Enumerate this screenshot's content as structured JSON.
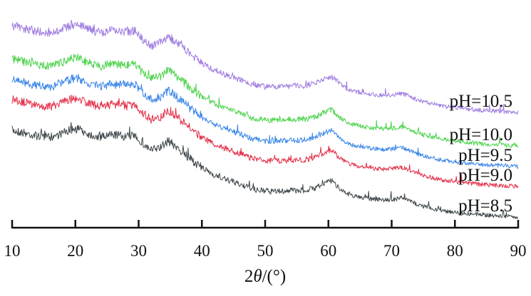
{
  "chart_data": {
    "type": "line",
    "title": "",
    "xlabel_prefix": "2",
    "xlabel_var": "θ",
    "xlabel_suffix": "/(°)",
    "ylabel": "",
    "xlim": [
      10,
      90
    ],
    "xticks": [
      "10",
      "20",
      "30",
      "40",
      "50",
      "60",
      "70",
      "80",
      "90"
    ],
    "y_axis_shown": false,
    "grid": false,
    "legend": "inline labels at right end of each trace",
    "series": [
      {
        "name": "pH=8.5",
        "color": "#3f474a",
        "offset": 0,
        "points": [
          [
            10,
            183
          ],
          [
            12,
            187
          ],
          [
            14,
            191
          ],
          [
            16,
            193
          ],
          [
            18,
            187
          ],
          [
            19.5,
            182
          ],
          [
            20.5,
            181
          ],
          [
            22,
            188
          ],
          [
            24,
            193
          ],
          [
            26,
            189
          ],
          [
            28,
            192
          ],
          [
            29.5,
            190
          ],
          [
            30.5,
            201
          ],
          [
            32,
            211
          ],
          [
            33.5,
            207
          ],
          [
            34.7,
            198
          ],
          [
            36,
            207
          ],
          [
            38,
            222
          ],
          [
            40,
            236
          ],
          [
            42,
            246
          ],
          [
            44,
            253
          ],
          [
            46,
            259
          ],
          [
            48,
            266
          ],
          [
            50,
            269
          ],
          [
            52,
            269
          ],
          [
            54,
            268
          ],
          [
            56,
            268
          ],
          [
            58,
            264
          ],
          [
            59.5,
            257
          ],
          [
            60.5,
            254
          ],
          [
            61.5,
            262
          ],
          [
            63,
            273
          ],
          [
            65,
            277
          ],
          [
            67,
            280
          ],
          [
            69,
            281
          ],
          [
            70.5,
            280
          ],
          [
            71.5,
            278
          ],
          [
            72.5,
            281
          ],
          [
            74,
            287
          ],
          [
            76,
            292
          ],
          [
            78,
            296
          ],
          [
            80,
            298
          ],
          [
            82,
            300
          ],
          [
            84,
            302
          ],
          [
            86,
            303
          ],
          [
            88,
            304
          ],
          [
            90,
            305
          ]
        ]
      },
      {
        "name": "pH=9.0",
        "color": "#e3304a",
        "offset": -43,
        "points": [
          [
            10,
            183
          ],
          [
            12,
            187
          ],
          [
            14,
            191
          ],
          [
            16,
            193
          ],
          [
            18,
            187
          ],
          [
            19.5,
            182
          ],
          [
            20.5,
            181
          ],
          [
            22,
            188
          ],
          [
            24,
            193
          ],
          [
            26,
            189
          ],
          [
            28,
            192
          ],
          [
            29.5,
            190
          ],
          [
            30.5,
            201
          ],
          [
            32,
            211
          ],
          [
            33.5,
            207
          ],
          [
            34.7,
            198
          ],
          [
            36,
            207
          ],
          [
            38,
            222
          ],
          [
            40,
            236
          ],
          [
            42,
            246
          ],
          [
            44,
            253
          ],
          [
            46,
            259
          ],
          [
            48,
            266
          ],
          [
            50,
            269
          ],
          [
            52,
            269
          ],
          [
            54,
            268
          ],
          [
            56,
            268
          ],
          [
            58,
            264
          ],
          [
            59.5,
            257
          ],
          [
            60.5,
            254
          ],
          [
            61.5,
            262
          ],
          [
            63,
            273
          ],
          [
            65,
            277
          ],
          [
            67,
            280
          ],
          [
            69,
            281
          ],
          [
            70.5,
            280
          ],
          [
            71.5,
            278
          ],
          [
            72.5,
            281
          ],
          [
            74,
            287
          ],
          [
            76,
            292
          ],
          [
            78,
            296
          ],
          [
            80,
            298
          ],
          [
            82,
            300
          ],
          [
            84,
            302
          ],
          [
            86,
            303
          ],
          [
            88,
            304
          ],
          [
            90,
            305
          ]
        ]
      },
      {
        "name": "pH=9.5",
        "color": "#3a86e8",
        "offset": -71,
        "points": [
          [
            10,
            183
          ],
          [
            12,
            187
          ],
          [
            14,
            191
          ],
          [
            16,
            193
          ],
          [
            18,
            187
          ],
          [
            19.5,
            182
          ],
          [
            20.5,
            181
          ],
          [
            22,
            188
          ],
          [
            24,
            193
          ],
          [
            26,
            189
          ],
          [
            28,
            192
          ],
          [
            29.5,
            190
          ],
          [
            30.5,
            201
          ],
          [
            32,
            211
          ],
          [
            33.5,
            207
          ],
          [
            34.7,
            198
          ],
          [
            36,
            207
          ],
          [
            38,
            222
          ],
          [
            40,
            236
          ],
          [
            42,
            246
          ],
          [
            44,
            253
          ],
          [
            46,
            259
          ],
          [
            48,
            266
          ],
          [
            50,
            269
          ],
          [
            52,
            269
          ],
          [
            54,
            268
          ],
          [
            56,
            268
          ],
          [
            58,
            264
          ],
          [
            59.5,
            257
          ],
          [
            60.5,
            254
          ],
          [
            61.5,
            262
          ],
          [
            63,
            273
          ],
          [
            65,
            277
          ],
          [
            67,
            280
          ],
          [
            69,
            281
          ],
          [
            70.5,
            280
          ],
          [
            71.5,
            278
          ],
          [
            72.5,
            281
          ],
          [
            74,
            287
          ],
          [
            76,
            292
          ],
          [
            78,
            296
          ],
          [
            80,
            298
          ],
          [
            82,
            300
          ],
          [
            84,
            302
          ],
          [
            86,
            303
          ],
          [
            88,
            304
          ],
          [
            90,
            305
          ]
        ]
      },
      {
        "name": "pH=10.0",
        "color": "#4fd44f",
        "offset": -100,
        "points": [
          [
            10,
            183
          ],
          [
            12,
            187
          ],
          [
            14,
            191
          ],
          [
            16,
            193
          ],
          [
            18,
            187
          ],
          [
            19.5,
            182
          ],
          [
            20.5,
            181
          ],
          [
            22,
            188
          ],
          [
            24,
            193
          ],
          [
            26,
            189
          ],
          [
            28,
            192
          ],
          [
            29.5,
            190
          ],
          [
            30.5,
            201
          ],
          [
            32,
            211
          ],
          [
            33.5,
            207
          ],
          [
            34.7,
            198
          ],
          [
            36,
            207
          ],
          [
            38,
            222
          ],
          [
            40,
            236
          ],
          [
            42,
            246
          ],
          [
            44,
            253
          ],
          [
            46,
            259
          ],
          [
            48,
            266
          ],
          [
            50,
            269
          ],
          [
            52,
            269
          ],
          [
            54,
            268
          ],
          [
            56,
            268
          ],
          [
            58,
            264
          ],
          [
            59.5,
            257
          ],
          [
            60.5,
            254
          ],
          [
            61.5,
            262
          ],
          [
            63,
            273
          ],
          [
            65,
            277
          ],
          [
            67,
            280
          ],
          [
            69,
            281
          ],
          [
            70.5,
            280
          ],
          [
            71.5,
            278
          ],
          [
            72.5,
            281
          ],
          [
            74,
            287
          ],
          [
            76,
            292
          ],
          [
            78,
            296
          ],
          [
            80,
            298
          ],
          [
            82,
            300
          ],
          [
            84,
            302
          ],
          [
            86,
            303
          ],
          [
            88,
            304
          ],
          [
            90,
            305
          ]
        ]
      },
      {
        "name": "pH=10.5",
        "color": "#a07ee0",
        "offset": -147,
        "points": [
          [
            10,
            183
          ],
          [
            12,
            187
          ],
          [
            14,
            191
          ],
          [
            16,
            193
          ],
          [
            18,
            187
          ],
          [
            19.5,
            182
          ],
          [
            20.5,
            181
          ],
          [
            22,
            188
          ],
          [
            24,
            193
          ],
          [
            26,
            189
          ],
          [
            28,
            192
          ],
          [
            29.5,
            190
          ],
          [
            30.5,
            201
          ],
          [
            32,
            211
          ],
          [
            33.5,
            207
          ],
          [
            34.7,
            198
          ],
          [
            36,
            207
          ],
          [
            38,
            222
          ],
          [
            40,
            236
          ],
          [
            42,
            246
          ],
          [
            44,
            253
          ],
          [
            46,
            259
          ],
          [
            48,
            266
          ],
          [
            50,
            269
          ],
          [
            52,
            269
          ],
          [
            54,
            268
          ],
          [
            56,
            268
          ],
          [
            58,
            264
          ],
          [
            59.5,
            257
          ],
          [
            60.5,
            254
          ],
          [
            61.5,
            262
          ],
          [
            63,
            273
          ],
          [
            65,
            277
          ],
          [
            67,
            280
          ],
          [
            69,
            281
          ],
          [
            70.5,
            280
          ],
          [
            71.5,
            278
          ],
          [
            72.5,
            281
          ],
          [
            74,
            287
          ],
          [
            76,
            292
          ],
          [
            78,
            296
          ],
          [
            80,
            298
          ],
          [
            82,
            300
          ],
          [
            84,
            302
          ],
          [
            86,
            303
          ],
          [
            88,
            304
          ],
          [
            90,
            305
          ]
        ]
      }
    ]
  }
}
